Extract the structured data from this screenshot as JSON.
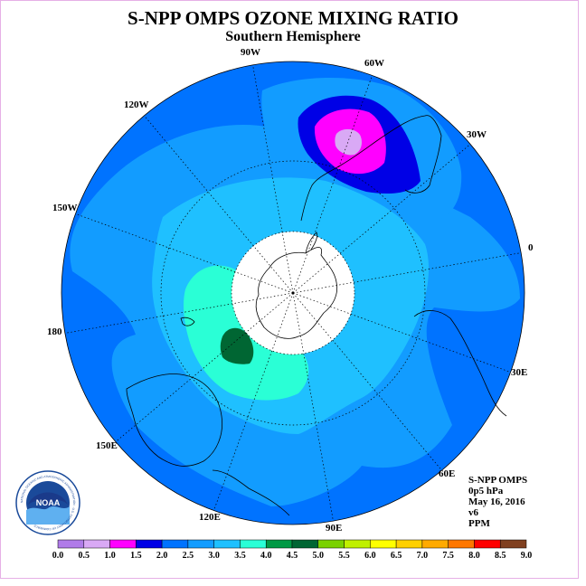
{
  "title": "S-NPP OMPS OZONE MIXING RATIO",
  "subtitle": "Southern Hemisphere",
  "longitude_labels": [
    "90W",
    "60W",
    "30W",
    "0",
    "30E",
    "60E",
    "90E",
    "120E",
    "150E",
    "180",
    "150W",
    "120W"
  ],
  "info": {
    "instrument": "S-NPP OMPS",
    "pressure": "0p5 hPa",
    "date": "May 16, 2016",
    "version": "v6",
    "units": "PPM"
  },
  "logo": {
    "text": "NOAA",
    "ring_text": "NATIONAL OCEANIC AND ATMOSPHERIC ADMINISTRATION · U.S. DEPARTMENT OF COMMERCE"
  },
  "colorbar": {
    "labels": [
      "0.0",
      "0.5",
      "1.0",
      "1.5",
      "2.0",
      "2.5",
      "3.0",
      "3.5",
      "4.0",
      "4.5",
      "5.0",
      "5.5",
      "6.0",
      "6.5",
      "7.0",
      "7.5",
      "8.0",
      "8.5",
      "9.0"
    ],
    "colors": [
      "#b07be8",
      "#d9a9f5",
      "#ff00ff",
      "#0000e6",
      "#0073ff",
      "#129cff",
      "#1fc0ff",
      "#2affd6",
      "#009944",
      "#006633",
      "#7ad100",
      "#c0f000",
      "#ffff00",
      "#ffd000",
      "#ffaa00",
      "#ff7700",
      "#ff0000",
      "#804020"
    ]
  },
  "colors": {
    "background_level": "#0073ff",
    "no_data_cap": "#ffffff",
    "frame": "#e6b0e6"
  }
}
